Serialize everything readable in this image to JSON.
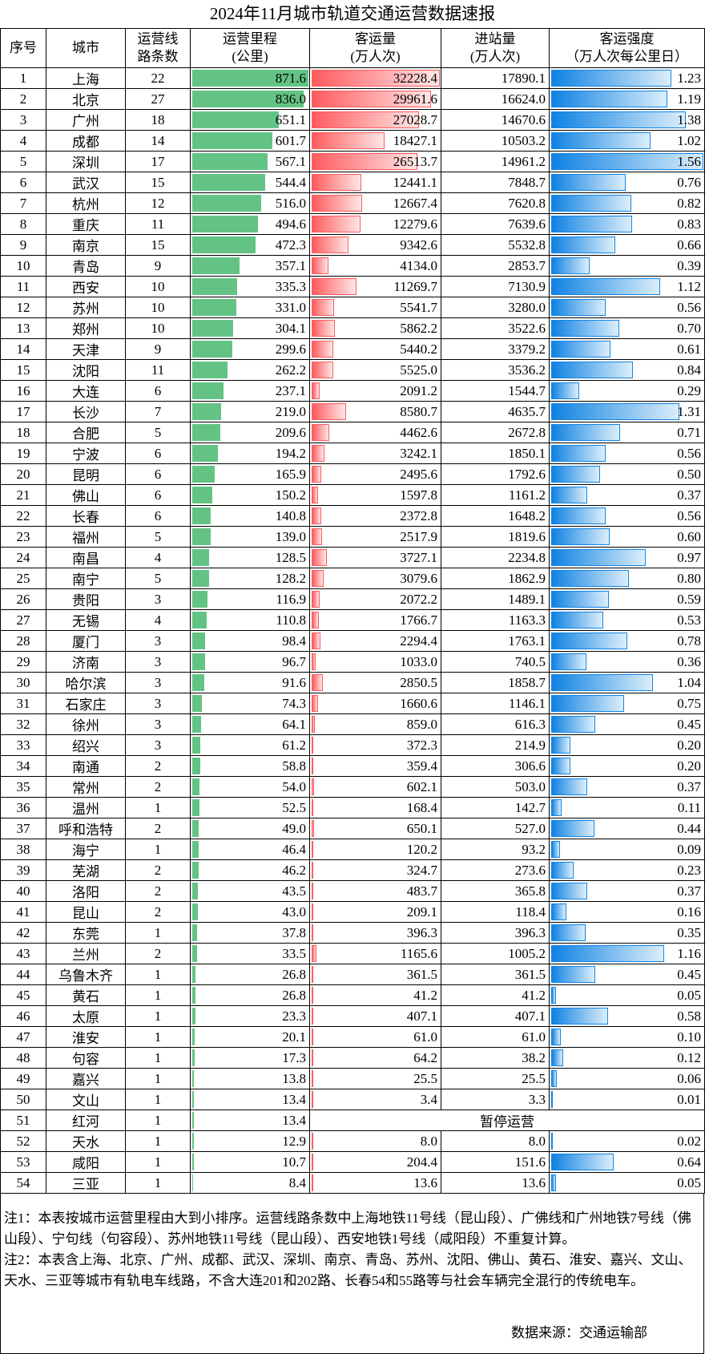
{
  "title": "2024年11月城市轨道交通运营数据速报",
  "headers": {
    "no": "序号",
    "city": "城市",
    "lines": "运营线路条数",
    "mileage": "运营里程（公里）",
    "passengers": "客运量（万人次）",
    "entries": "进站量（万人次）",
    "intensity": "客运强度（万人次每公里日）"
  },
  "header_lines": {
    "lines": [
      "运营线",
      "路条数"
    ],
    "mileage": [
      "运营里程",
      "(公里)"
    ],
    "passengers": [
      "客运量",
      "(万人次)"
    ],
    "entries": [
      "进站量",
      "(万人次)"
    ],
    "intensity": [
      "客运强度",
      "（万人次每公里日）"
    ]
  },
  "colors": {
    "mileage_bar": "#63c384",
    "passenger_bar": "#ff5b5e",
    "intensity_bar": "#0f82e2"
  },
  "suspended_label": "暂停运营",
  "rows": [
    [
      "1",
      "上海",
      "22",
      "871.6",
      "32228.4",
      "17890.1",
      "1.23"
    ],
    [
      "2",
      "北京",
      "27",
      "836.0",
      "29961.6",
      "16624.0",
      "1.19"
    ],
    [
      "3",
      "广州",
      "18",
      "651.1",
      "27028.7",
      "14670.6",
      "1.38"
    ],
    [
      "4",
      "成都",
      "14",
      "601.7",
      "18427.1",
      "10503.2",
      "1.02"
    ],
    [
      "5",
      "深圳",
      "17",
      "567.1",
      "26513.7",
      "14961.2",
      "1.56"
    ],
    [
      "6",
      "武汉",
      "15",
      "544.4",
      "12441.1",
      "7848.7",
      "0.76"
    ],
    [
      "7",
      "杭州",
      "12",
      "516.0",
      "12667.4",
      "7620.8",
      "0.82"
    ],
    [
      "8",
      "重庆",
      "11",
      "494.6",
      "12279.6",
      "7639.6",
      "0.83"
    ],
    [
      "9",
      "南京",
      "15",
      "472.3",
      "9342.6",
      "5532.8",
      "0.66"
    ],
    [
      "10",
      "青岛",
      "9",
      "357.1",
      "4134.0",
      "2853.7",
      "0.39"
    ],
    [
      "11",
      "西安",
      "10",
      "335.3",
      "11269.7",
      "7130.9",
      "1.12"
    ],
    [
      "12",
      "苏州",
      "10",
      "331.0",
      "5541.7",
      "3280.0",
      "0.56"
    ],
    [
      "13",
      "郑州",
      "10",
      "304.1",
      "5862.2",
      "3522.6",
      "0.70"
    ],
    [
      "14",
      "天津",
      "9",
      "299.6",
      "5440.2",
      "3379.2",
      "0.61"
    ],
    [
      "15",
      "沈阳",
      "11",
      "262.2",
      "5525.0",
      "3536.2",
      "0.84"
    ],
    [
      "16",
      "大连",
      "6",
      "237.1",
      "2091.2",
      "1544.7",
      "0.29"
    ],
    [
      "17",
      "长沙",
      "7",
      "219.0",
      "8580.7",
      "4635.7",
      "1.31"
    ],
    [
      "18",
      "合肥",
      "5",
      "209.6",
      "4462.6",
      "2672.8",
      "0.71"
    ],
    [
      "19",
      "宁波",
      "6",
      "194.2",
      "3242.1",
      "1850.1",
      "0.56"
    ],
    [
      "20",
      "昆明",
      "6",
      "165.9",
      "2495.6",
      "1792.6",
      "0.50"
    ],
    [
      "21",
      "佛山",
      "6",
      "150.2",
      "1597.8",
      "1161.2",
      "0.37"
    ],
    [
      "22",
      "长春",
      "6",
      "140.8",
      "2372.8",
      "1648.2",
      "0.56"
    ],
    [
      "23",
      "福州",
      "5",
      "139.0",
      "2517.9",
      "1819.6",
      "0.60"
    ],
    [
      "24",
      "南昌",
      "4",
      "128.5",
      "3727.1",
      "2234.8",
      "0.97"
    ],
    [
      "25",
      "南宁",
      "5",
      "128.2",
      "3079.6",
      "1862.9",
      "0.80"
    ],
    [
      "26",
      "贵阳",
      "3",
      "116.9",
      "2072.2",
      "1489.1",
      "0.59"
    ],
    [
      "27",
      "无锡",
      "4",
      "110.8",
      "1766.7",
      "1163.3",
      "0.53"
    ],
    [
      "28",
      "厦门",
      "3",
      "98.4",
      "2294.4",
      "1763.1",
      "0.78"
    ],
    [
      "29",
      "济南",
      "3",
      "96.7",
      "1033.0",
      "740.5",
      "0.36"
    ],
    [
      "30",
      "哈尔滨",
      "3",
      "91.6",
      "2850.5",
      "1858.7",
      "1.04"
    ],
    [
      "31",
      "石家庄",
      "3",
      "74.3",
      "1660.6",
      "1146.1",
      "0.75"
    ],
    [
      "32",
      "徐州",
      "3",
      "64.1",
      "859.0",
      "616.3",
      "0.45"
    ],
    [
      "33",
      "绍兴",
      "3",
      "61.2",
      "372.3",
      "214.9",
      "0.20"
    ],
    [
      "34",
      "南通",
      "2",
      "58.8",
      "359.4",
      "306.6",
      "0.20"
    ],
    [
      "35",
      "常州",
      "2",
      "54.0",
      "602.1",
      "503.0",
      "0.37"
    ],
    [
      "36",
      "温州",
      "1",
      "52.5",
      "168.4",
      "142.7",
      "0.11"
    ],
    [
      "37",
      "呼和浩特",
      "2",
      "49.0",
      "650.1",
      "527.0",
      "0.44"
    ],
    [
      "38",
      "海宁",
      "1",
      "46.4",
      "120.2",
      "93.2",
      "0.09"
    ],
    [
      "39",
      "芜湖",
      "2",
      "46.2",
      "324.7",
      "273.6",
      "0.23"
    ],
    [
      "40",
      "洛阳",
      "2",
      "43.5",
      "483.7",
      "365.8",
      "0.37"
    ],
    [
      "41",
      "昆山",
      "2",
      "43.0",
      "209.1",
      "118.4",
      "0.16"
    ],
    [
      "42",
      "东莞",
      "1",
      "37.8",
      "396.3",
      "396.3",
      "0.35"
    ],
    [
      "43",
      "兰州",
      "2",
      "33.5",
      "1165.6",
      "1005.2",
      "1.16"
    ],
    [
      "44",
      "乌鲁木齐",
      "1",
      "26.8",
      "361.5",
      "361.5",
      "0.45"
    ],
    [
      "45",
      "黄石",
      "1",
      "26.8",
      "41.2",
      "41.2",
      "0.05"
    ],
    [
      "46",
      "太原",
      "1",
      "23.3",
      "407.1",
      "407.1",
      "0.58"
    ],
    [
      "47",
      "淮安",
      "1",
      "20.1",
      "61.0",
      "61.0",
      "0.10"
    ],
    [
      "48",
      "句容",
      "1",
      "17.3",
      "64.2",
      "38.2",
      "0.12"
    ],
    [
      "49",
      "嘉兴",
      "1",
      "13.8",
      "25.5",
      "25.5",
      "0.06"
    ],
    [
      "50",
      "文山",
      "1",
      "13.4",
      "3.4",
      "3.3",
      "0.01"
    ],
    [
      "51",
      "红河",
      "1",
      "13.4",
      null,
      null,
      null
    ],
    [
      "52",
      "天水",
      "1",
      "12.9",
      "8.0",
      "8.0",
      "0.02"
    ],
    [
      "53",
      "咸阳",
      "1",
      "10.7",
      "204.4",
      "151.6",
      "0.64"
    ],
    [
      "54",
      "三亚",
      "1",
      "8.4",
      "13.6",
      "13.6",
      "0.05"
    ]
  ],
  "notes": {
    "note1": "注1：本表按城市运营里程由大到小排序。运营线路条数中上海地铁11号线（昆山段）、广佛线和广州地铁7号线（佛山段）、宁句线（句容段）、苏州地铁11号线（昆山段）、西安地铁1号线（咸阳段）不重复计算。",
    "note2": "注2：本表含上海、北京、广州、成都、武汉、深圳、南京、青岛、苏州、沈阳、佛山、黄石、淮安、嘉兴、文山、天水、三亚等城市有轨电车线路，不含大连201和202路、长春54和55路等与社会车辆完全混行的传统电车。",
    "source": "数据来源：交通运输部"
  }
}
